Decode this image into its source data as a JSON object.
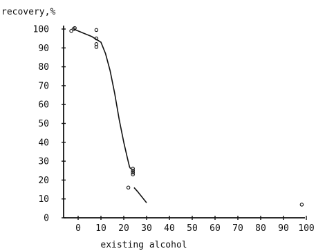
{
  "chart_data": {
    "type": "scatter",
    "title": "",
    "xlabel": "existing alcohol",
    "ylabel": "recovery,%",
    "xlim": [
      -5,
      100
    ],
    "ylim": [
      0,
      100
    ],
    "x_ticks": [
      0,
      10,
      20,
      30,
      40,
      50,
      60,
      70,
      80,
      90,
      100
    ],
    "y_ticks": [
      0,
      10,
      20,
      30,
      40,
      50,
      60,
      70,
      80,
      90,
      100
    ],
    "grid": false,
    "legend": "none",
    "series": [
      {
        "kind": "points",
        "points": [
          {
            "x": -3,
            "y": 99
          },
          {
            "x": -2,
            "y": 100
          },
          {
            "x": -1.5,
            "y": 100.5
          },
          {
            "x": 8,
            "y": 99.5
          },
          {
            "x": 8,
            "y": 95
          },
          {
            "x": 8,
            "y": 92
          },
          {
            "x": 8,
            "y": 90.5
          },
          {
            "x": 24,
            "y": 26
          },
          {
            "x": 24,
            "y": 25
          },
          {
            "x": 24,
            "y": 24
          },
          {
            "x": 24,
            "y": 23
          },
          {
            "x": 22,
            "y": 16
          },
          {
            "x": 98,
            "y": 7
          }
        ]
      },
      {
        "kind": "curve",
        "segments": [
          [
            [
              -2,
              100
            ],
            [
              2,
              98
            ],
            [
              6,
              96
            ],
            [
              10,
              93
            ],
            [
              12,
              87
            ],
            [
              14,
              78
            ],
            [
              16,
              66
            ],
            [
              18,
              52
            ],
            [
              20,
              40
            ],
            [
              21.5,
              32
            ],
            [
              22.5,
              27
            ],
            [
              23,
              26
            ]
          ],
          [
            [
              24.5,
              16
            ],
            [
              26,
              14
            ],
            [
              28,
              11
            ],
            [
              30,
              8
            ]
          ]
        ]
      }
    ]
  }
}
